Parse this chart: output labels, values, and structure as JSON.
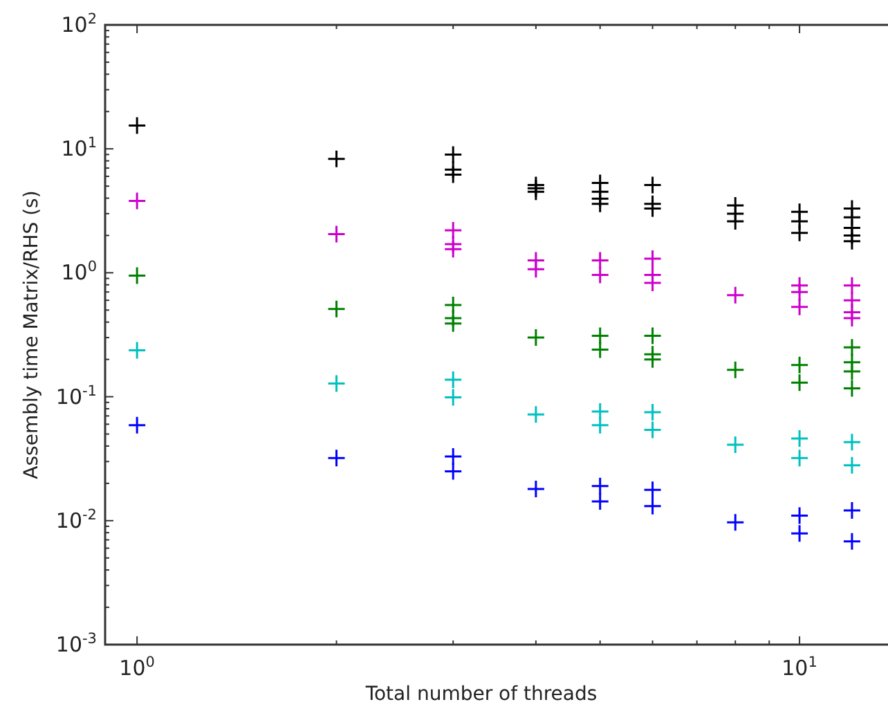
{
  "chart_data": {
    "type": "scatter",
    "xlabel": "Total number of threads",
    "ylabel": "Assembly time Matrix/RHS (s)",
    "log": "xy",
    "marker": "cross",
    "grid": false,
    "xlim": [
      0.895,
      13.6
    ],
    "ylim": [
      0.001,
      100
    ],
    "xticks": [
      {
        "value": 1,
        "label": "10$^{0}$"
      },
      {
        "value": 2,
        "label": null
      },
      {
        "value": 3,
        "label": null
      },
      {
        "value": 4,
        "label": null
      },
      {
        "value": 5,
        "label": null
      },
      {
        "value": 6,
        "label": null
      },
      {
        "value": 7,
        "label": null
      },
      {
        "value": 8,
        "label": null
      },
      {
        "value": 9,
        "label": null
      },
      {
        "value": 10,
        "label": "10$^{1}$"
      }
    ],
    "yticks": [
      {
        "value": 0.001,
        "label": "10$^{-3}$"
      },
      {
        "value": 0.002,
        "label": null
      },
      {
        "value": 0.003,
        "label": null
      },
      {
        "value": 0.004,
        "label": null
      },
      {
        "value": 0.005,
        "label": null
      },
      {
        "value": 0.006,
        "label": null
      },
      {
        "value": 0.007,
        "label": null
      },
      {
        "value": 0.008,
        "label": null
      },
      {
        "value": 0.009,
        "label": null
      },
      {
        "value": 0.01,
        "label": "10$^{-2}$"
      },
      {
        "value": 0.02,
        "label": null
      },
      {
        "value": 0.03,
        "label": null
      },
      {
        "value": 0.04,
        "label": null
      },
      {
        "value": 0.05,
        "label": null
      },
      {
        "value": 0.06,
        "label": null
      },
      {
        "value": 0.07,
        "label": null
      },
      {
        "value": 0.08,
        "label": null
      },
      {
        "value": 0.09,
        "label": null
      },
      {
        "value": 0.1,
        "label": "10$^{-1}$"
      },
      {
        "value": 0.2,
        "label": null
      },
      {
        "value": 0.3,
        "label": null
      },
      {
        "value": 0.4,
        "label": null
      },
      {
        "value": 0.5,
        "label": null
      },
      {
        "value": 0.6,
        "label": null
      },
      {
        "value": 0.7,
        "label": null
      },
      {
        "value": 0.8,
        "label": null
      },
      {
        "value": 0.9,
        "label": null
      },
      {
        "value": 1,
        "label": "10$^{0}$"
      },
      {
        "value": 2,
        "label": null
      },
      {
        "value": 3,
        "label": null
      },
      {
        "value": 4,
        "label": null
      },
      {
        "value": 5,
        "label": null
      },
      {
        "value": 6,
        "label": null
      },
      {
        "value": 7,
        "label": null
      },
      {
        "value": 8,
        "label": null
      },
      {
        "value": 9,
        "label": null
      },
      {
        "value": 10,
        "label": "10$^{1}$"
      },
      {
        "value": 20,
        "label": null
      },
      {
        "value": 30,
        "label": null
      },
      {
        "value": 40,
        "label": null
      },
      {
        "value": 50,
        "label": null
      },
      {
        "value": 60,
        "label": null
      },
      {
        "value": 70,
        "label": null
      },
      {
        "value": 80,
        "label": null
      },
      {
        "value": 90,
        "label": null
      },
      {
        "value": 100,
        "label": "10$^{2}$"
      }
    ],
    "series": [
      {
        "color": "#000000",
        "x": [
          1,
          2,
          3,
          3,
          3,
          4,
          4,
          4,
          5,
          5,
          5,
          5,
          6,
          6,
          6,
          8,
          8,
          8,
          10,
          10,
          10,
          12,
          12,
          12,
          12,
          12
        ],
        "values": [
          15.4,
          8.3,
          9.0,
          6.8,
          6.2,
          4.8,
          4.5,
          5.1,
          5.3,
          4.5,
          3.96,
          3.6,
          5.1,
          3.6,
          3.3,
          3.5,
          3.0,
          2.6,
          3.1,
          2.6,
          2.1,
          3.3,
          2.8,
          2.3,
          2.0,
          1.8
        ]
      },
      {
        "color": "#cc00cc",
        "x": [
          1,
          2,
          3,
          3,
          3,
          4,
          4,
          5,
          5,
          6,
          6,
          6,
          8,
          10,
          10,
          10,
          12,
          12,
          12,
          12
        ],
        "values": [
          3.8,
          2.05,
          2.2,
          1.7,
          1.55,
          1.26,
          1.07,
          1.26,
          0.96,
          1.3,
          0.96,
          0.83,
          0.66,
          0.79,
          0.7,
          0.53,
          0.79,
          0.6,
          0.48,
          0.43
        ]
      },
      {
        "color": "#008000",
        "x": [
          1,
          2,
          3,
          3,
          3,
          4,
          5,
          5,
          6,
          6,
          6,
          8,
          10,
          10,
          12,
          12,
          12,
          12
        ],
        "values": [
          0.95,
          0.51,
          0.55,
          0.43,
          0.39,
          0.3,
          0.31,
          0.24,
          0.31,
          0.22,
          0.2,
          0.165,
          0.18,
          0.13,
          0.25,
          0.19,
          0.16,
          0.117
        ]
      },
      {
        "color": "#00c0c0",
        "x": [
          1,
          2,
          3,
          3,
          4,
          5,
          5,
          6,
          6,
          8,
          10,
          10,
          12,
          12
        ],
        "values": [
          0.237,
          0.128,
          0.137,
          0.099,
          0.072,
          0.076,
          0.059,
          0.075,
          0.054,
          0.041,
          0.046,
          0.032,
          0.043,
          0.028
        ]
      },
      {
        "color": "#0000ff",
        "x": [
          1,
          2,
          3,
          3,
          4,
          5,
          5,
          6,
          6,
          8,
          10,
          10,
          12,
          12
        ],
        "values": [
          0.059,
          0.032,
          0.033,
          0.025,
          0.018,
          0.019,
          0.0143,
          0.0177,
          0.0131,
          0.0097,
          0.011,
          0.0079,
          0.0121,
          0.0068
        ]
      }
    ]
  }
}
